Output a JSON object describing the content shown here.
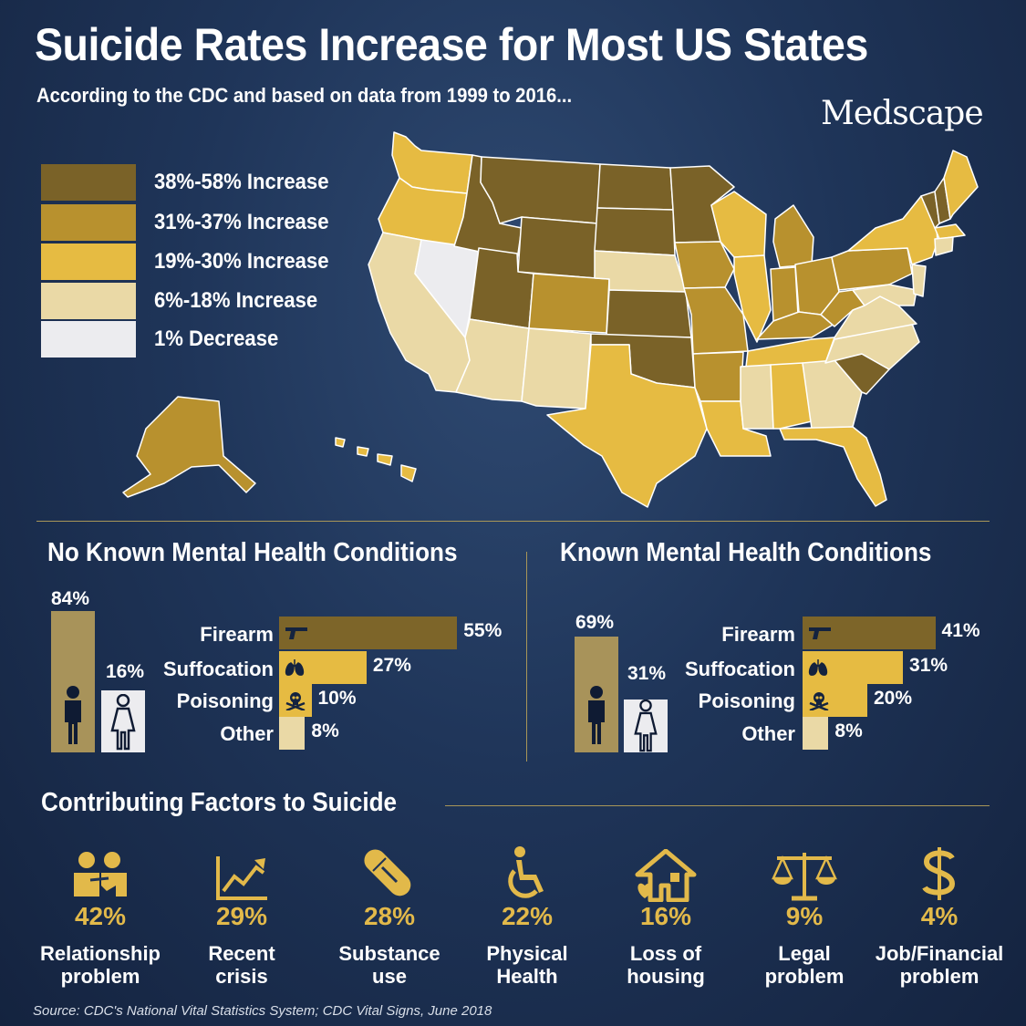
{
  "header": {
    "title": "Suicide Rates Increase for Most US States",
    "subtitle": "According to the CDC and based on data from 1999 to 2016...",
    "brand": "Medscape"
  },
  "legend": [
    {
      "label": "38%-58% Increase",
      "color": "#7a6228"
    },
    {
      "label": "31%-37% Increase",
      "color": "#b8912e"
    },
    {
      "label": "19%-30% Increase",
      "color": "#e6bb42"
    },
    {
      "label": "6%-18% Increase",
      "color": "#ead9a6"
    },
    {
      "label": "1% Decrease",
      "color": "#ececef"
    }
  ],
  "no_known": {
    "title": "No Known Mental Health Conditions",
    "male_pct": "84%",
    "female_pct": "16%",
    "methods": [
      {
        "label": "Firearm",
        "value_label": "55%",
        "value": 55,
        "icon": "gun-icon"
      },
      {
        "label": "Suffocation",
        "value_label": "27%",
        "value": 27,
        "icon": "lungs-icon"
      },
      {
        "label": "Poisoning",
        "value_label": "10%",
        "value": 10,
        "icon": "skull-icon"
      },
      {
        "label": "Other",
        "value_label": "8%",
        "value": 8,
        "icon": ""
      }
    ]
  },
  "known": {
    "title": "Known Mental Health Conditions",
    "male_pct": "69%",
    "female_pct": "31%",
    "methods": [
      {
        "label": "Firearm",
        "value_label": "41%",
        "value": 41,
        "icon": "gun-icon"
      },
      {
        "label": "Suffocation",
        "value_label": "31%",
        "value": 31,
        "icon": "lungs-icon"
      },
      {
        "label": "Poisoning",
        "value_label": "20%",
        "value": 20,
        "icon": "skull-icon"
      },
      {
        "label": "Other",
        "value_label": "8%",
        "value": 8,
        "icon": ""
      }
    ]
  },
  "factors": {
    "title": "Contributing Factors to Suicide",
    "items": [
      {
        "pct": "42%",
        "line1": "Relationship",
        "line2": "problem",
        "icon": "relationship-icon"
      },
      {
        "pct": "29%",
        "line1": "Recent",
        "line2": "crisis",
        "icon": "trend-chart-icon"
      },
      {
        "pct": "28%",
        "line1": "Substance",
        "line2": "use",
        "icon": "pill-icon"
      },
      {
        "pct": "22%",
        "line1": "Physical",
        "line2": "Health",
        "icon": "wheelchair-icon"
      },
      {
        "pct": "16%",
        "line1": "Loss of",
        "line2": "housing",
        "icon": "house-heart-icon"
      },
      {
        "pct": "9%",
        "line1": "Legal",
        "line2": "problem",
        "icon": "scales-icon"
      },
      {
        "pct": "4%",
        "line1": "Job/Financial",
        "line2": "problem",
        "icon": "dollar-icon"
      }
    ]
  },
  "source": "Source: CDC's National Vital Statistics System; CDC Vital Signs, June 2018",
  "colors": {
    "dark": "#7a6228",
    "mid": "#b8912e",
    "gold": "#e6bb42",
    "light": "#ead9a6",
    "white": "#ececef",
    "accent": "#e2b94a",
    "bar_dark": "#7d6529"
  }
}
